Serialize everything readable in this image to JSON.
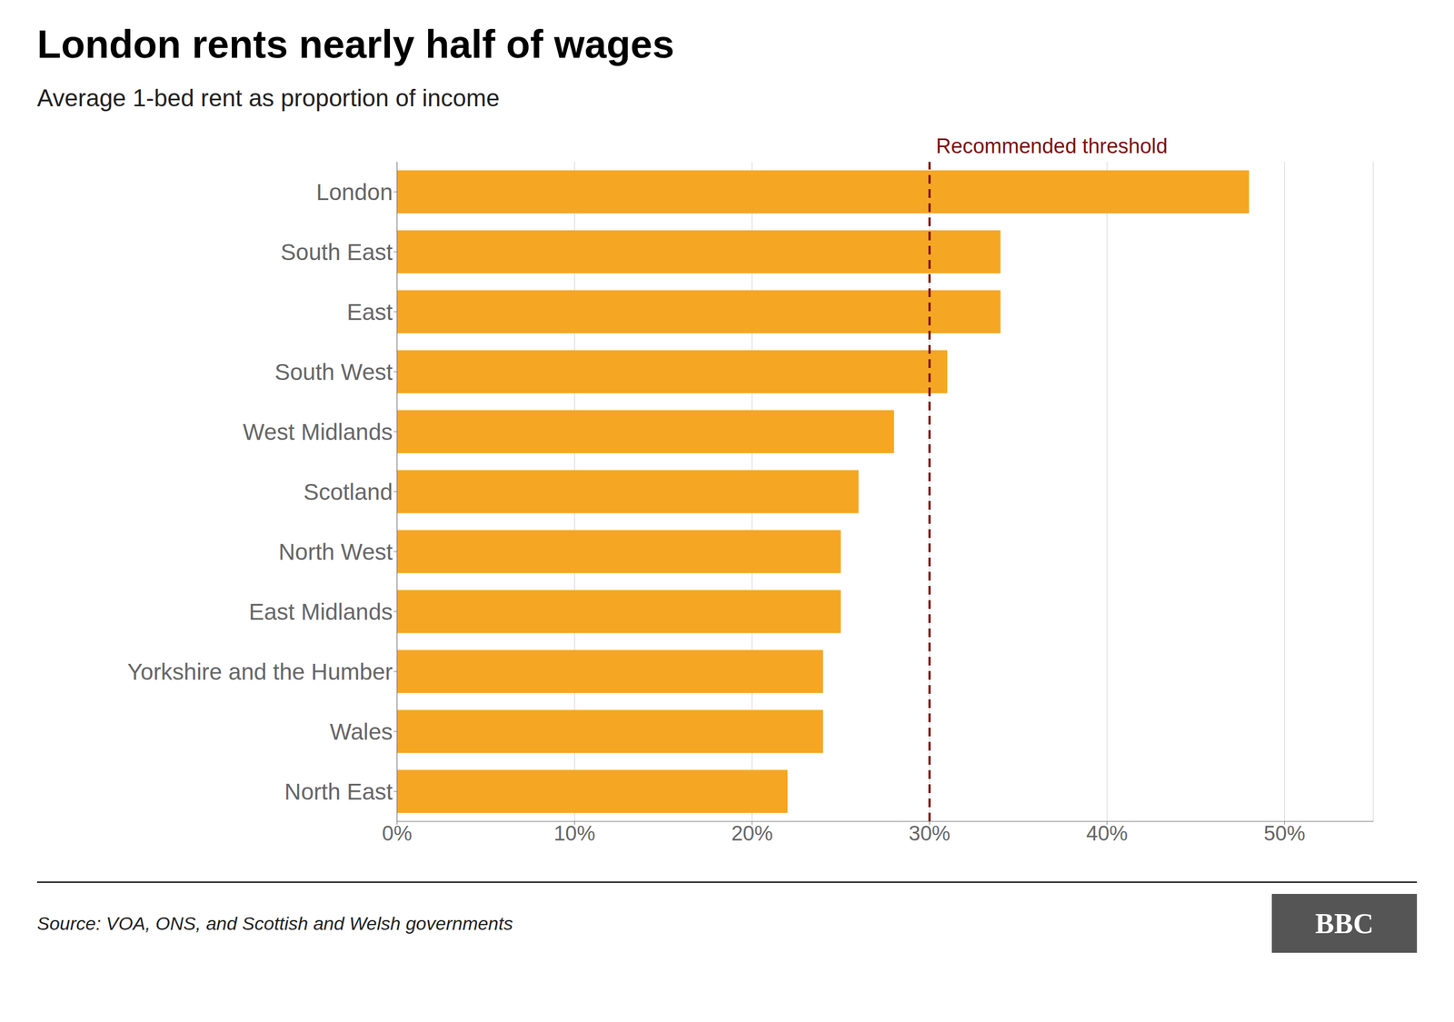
{
  "chart_data": {
    "type": "bar",
    "orientation": "horizontal",
    "title": "London rents nearly half of wages",
    "subtitle": "Average 1-bed rent as proportion of income",
    "source": "Source: VOA, ONS, and Scottish and Welsh governments",
    "logo": "BBC",
    "categories": [
      "London",
      "South East",
      "East",
      "South West",
      "West Midlands",
      "Scotland",
      "North West",
      "East Midlands",
      "Yorkshire and the Humber",
      "Wales",
      "North East"
    ],
    "values": [
      48,
      34,
      34,
      31,
      28,
      26,
      25,
      25,
      24,
      24,
      22
    ],
    "color": "#F5A623",
    "xlim": [
      0,
      55
    ],
    "xticks": [
      {
        "value": 0,
        "label": "0%"
      },
      {
        "value": 10,
        "label": "10%"
      },
      {
        "value": 20,
        "label": "20%"
      },
      {
        "value": 30,
        "label": "30%"
      },
      {
        "value": 40,
        "label": "40%"
      },
      {
        "value": 50,
        "label": "50%"
      }
    ],
    "grid": true,
    "annotations": [
      {
        "type": "line",
        "x": 30,
        "label": "Recommended threshold",
        "color": "#7B1010"
      }
    ]
  }
}
